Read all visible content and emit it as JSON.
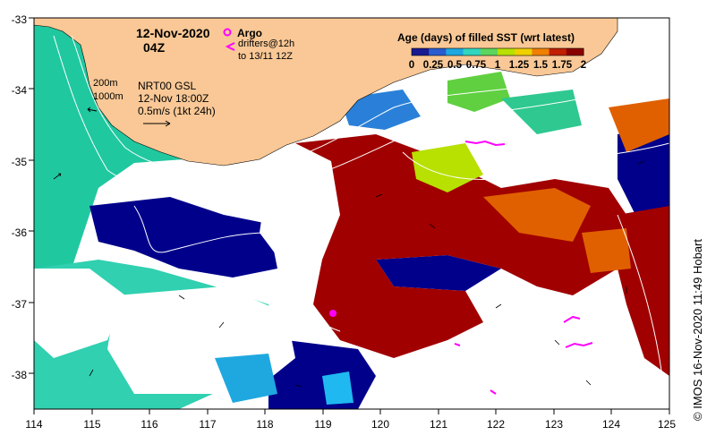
{
  "title": {
    "date": "12-Nov-2020",
    "time": "04Z"
  },
  "legend": {
    "argo_label": "Argo",
    "drifters_line1": "drifters@12h",
    "drifters_line2": "to 13/11 12Z",
    "colorbar_title": "Age (days) of filled SST (wrt latest)",
    "colorbar_ticks": [
      "0",
      "0.25",
      "0.5",
      "0.75",
      "1",
      "1.25",
      "1.5",
      "1.75",
      "2"
    ],
    "colorbar_colors": [
      "#1a1a90",
      "#2a5cd0",
      "#1fa8e0",
      "#30d6c0",
      "#5cd65c",
      "#b8e000",
      "#f0d000",
      "#f08000",
      "#c02000",
      "#8b0000"
    ]
  },
  "annotations": {
    "isobath_200": "200m",
    "isobath_1000": "1000m",
    "product": "NRT00 GSL",
    "product_time": "12-Nov 18:00Z",
    "arrow_scale": "0.5m/s (1kt 24h)"
  },
  "axes": {
    "x_ticks": [
      "114",
      "115",
      "116",
      "117",
      "118",
      "119",
      "120",
      "121",
      "122",
      "123",
      "124",
      "125"
    ],
    "y_ticks": [
      "-33",
      "-34",
      "-35",
      "-36",
      "-37",
      "-38"
    ],
    "lon_range": [
      114,
      125
    ],
    "lat_range": [
      -38.5,
      -33
    ]
  },
  "colors": {
    "land": "#f9c896",
    "no_data": "#ffffff",
    "age_0": "#00008b",
    "age_mid": "#20c8a0",
    "age_2": "#a00000",
    "argo": "#ff00ff",
    "drifter": "#ff00ff"
  },
  "credit": "© IMOS 16-Nov-2020 11:49 Hobart"
}
